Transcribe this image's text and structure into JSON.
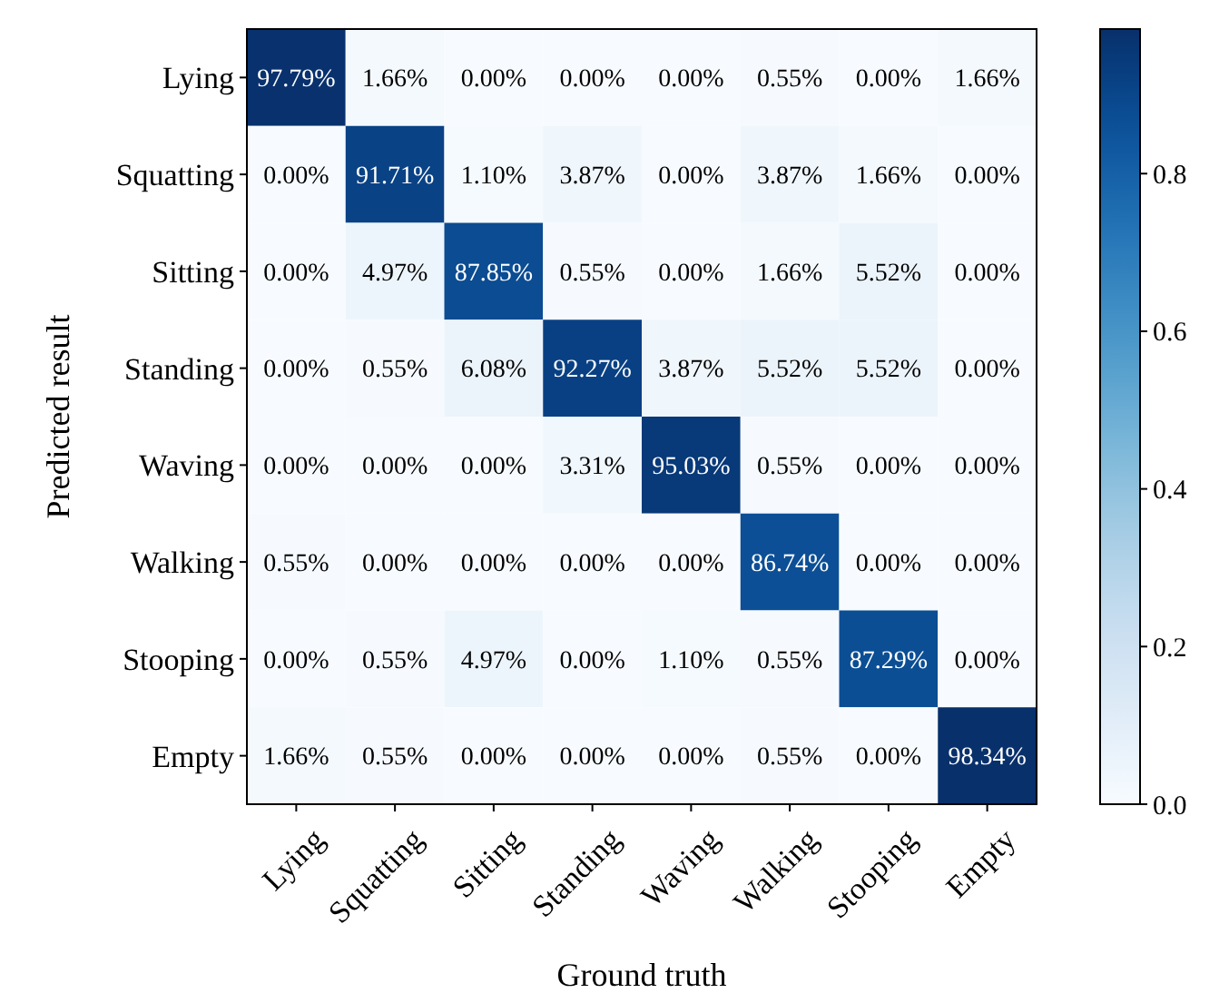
{
  "chart_data": {
    "type": "heatmap",
    "xlabel": "Ground truth",
    "ylabel": "Predicted result",
    "categories": [
      "Lying",
      "Squatting",
      "Sitting",
      "Standing",
      "Waving",
      "Walking",
      "Stooping",
      "Empty"
    ],
    "y_categories": [
      "Lying",
      "Squatting",
      "Sitting",
      "Standing",
      "Waving",
      "Walking",
      "Stooping",
      "Empty"
    ],
    "cells": [
      [
        0.9779,
        0.0166,
        0,
        0,
        0,
        0.0055,
        0,
        0.0166
      ],
      [
        0,
        0.9171,
        0.011,
        0.0387,
        0,
        0.0387,
        0.0166,
        0
      ],
      [
        0,
        0.0497,
        0.8785,
        0.0055,
        0,
        0.0166,
        0.0552,
        0
      ],
      [
        0,
        0.0055,
        0.0608,
        0.9227,
        0.0387,
        0.0552,
        0.0552,
        0
      ],
      [
        0,
        0,
        0,
        0.0331,
        0.9503,
        0.0055,
        0,
        0
      ],
      [
        0.0055,
        0,
        0,
        0,
        0,
        0.8674,
        0,
        0
      ],
      [
        0,
        0.0055,
        0.0497,
        0,
        0.011,
        0.0055,
        0.8729,
        0
      ],
      [
        0.0166,
        0.0055,
        0,
        0,
        0,
        0.0055,
        0,
        0.9834
      ]
    ],
    "cell_labels": [
      [
        "97.79%",
        "1.66%",
        "0.00%",
        "0.00%",
        "0.00%",
        "0.55%",
        "0.00%",
        "1.66%"
      ],
      [
        "0.00%",
        "91.71%",
        "1.10%",
        "3.87%",
        "0.00%",
        "3.87%",
        "1.66%",
        "0.00%"
      ],
      [
        "0.00%",
        "4.97%",
        "87.85%",
        "0.55%",
        "0.00%",
        "1.66%",
        "5.52%",
        "0.00%"
      ],
      [
        "0.00%",
        "0.55%",
        "6.08%",
        "92.27%",
        "3.87%",
        "5.52%",
        "5.52%",
        "0.00%"
      ],
      [
        "0.00%",
        "0.00%",
        "0.00%",
        "3.31%",
        "95.03%",
        "0.55%",
        "0.00%",
        "0.00%"
      ],
      [
        "0.55%",
        "0.00%",
        "0.00%",
        "0.00%",
        "0.00%",
        "86.74%",
        "0.00%",
        "0.00%"
      ],
      [
        "0.00%",
        "0.55%",
        "4.97%",
        "0.00%",
        "1.10%",
        "0.55%",
        "87.29%",
        "0.00%"
      ],
      [
        "1.66%",
        "0.55%",
        "0.00%",
        "0.00%",
        "0.00%",
        "0.55%",
        "0.00%",
        "98.34%"
      ]
    ],
    "clim": [
      0,
      0.9834
    ],
    "cticks": [
      {
        "value": 0,
        "label": "0.0"
      },
      0.2,
      0.4,
      0.6,
      0.8
    ]
  }
}
